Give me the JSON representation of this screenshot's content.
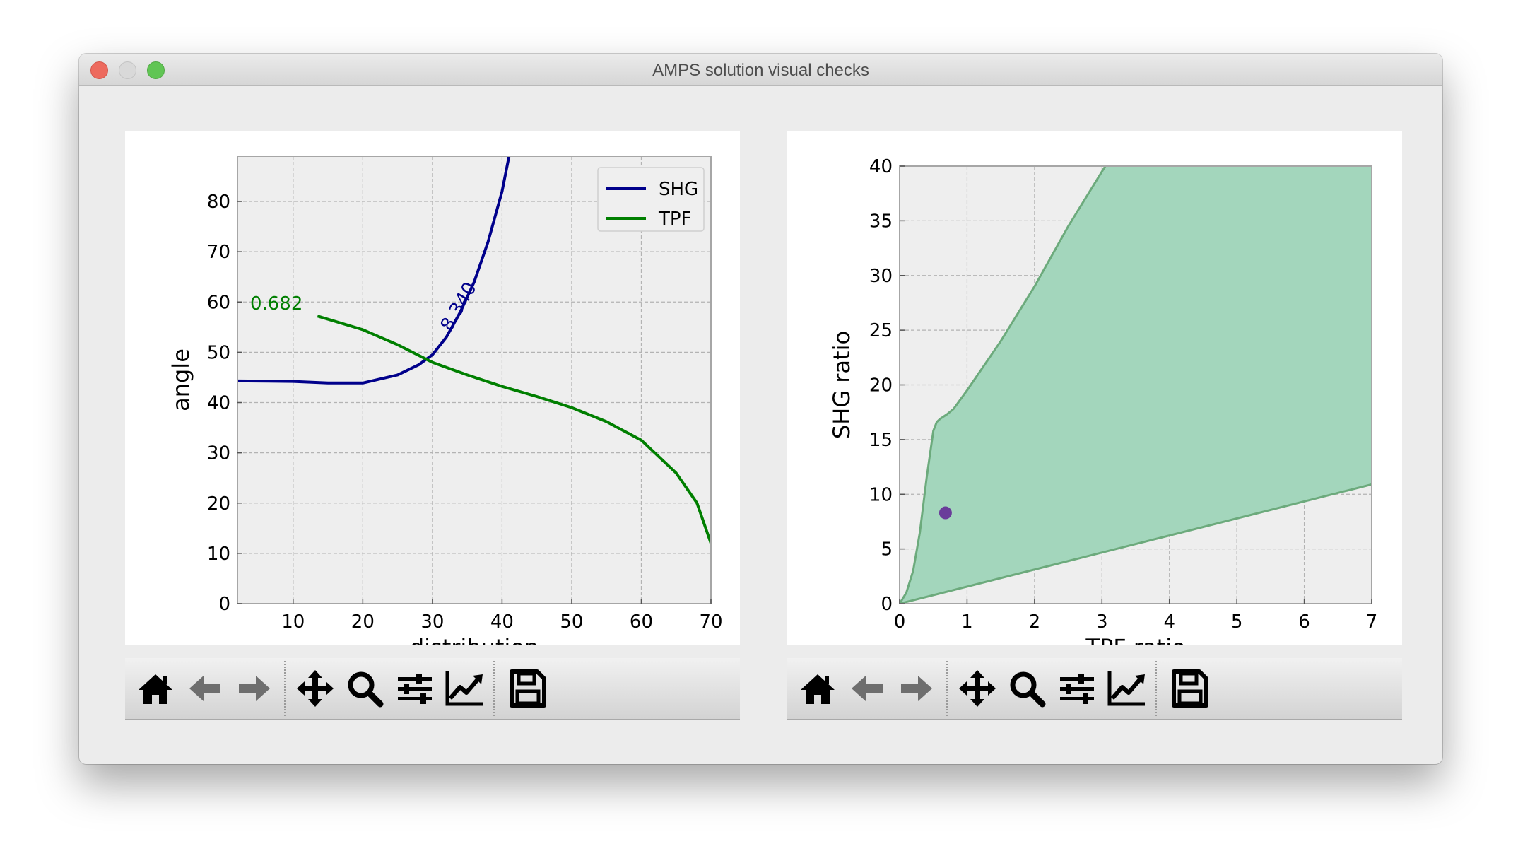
{
  "window": {
    "title": "AMPS solution visual checks"
  },
  "toolbar_icons": [
    "home-icon",
    "back-arrow-icon",
    "forward-arrow-icon",
    "pan-icon",
    "zoom-icon",
    "subplots-config-icon",
    "axes-edit-icon",
    "save-icon"
  ],
  "colors": {
    "shg": "#00008b",
    "tpf": "#007f00",
    "fill": "#a3d6bc",
    "fill_edge": "#6caa7c",
    "point": "#6a3d9a",
    "axes_bg": "#eeeeee"
  },
  "chart_data": [
    {
      "type": "line",
      "xlabel": "distribution",
      "ylabel": "angle",
      "xlim": [
        2,
        70
      ],
      "ylim": [
        0,
        89
      ],
      "xticks": [
        10,
        20,
        30,
        40,
        50,
        60,
        70
      ],
      "yticks": [
        0,
        10,
        20,
        30,
        40,
        50,
        60,
        70,
        80
      ],
      "grid": true,
      "legend": "top-right",
      "series": [
        {
          "name": "SHG",
          "x": [
            2,
            10,
            15,
            20,
            25,
            28,
            30,
            32,
            34,
            36,
            38,
            40,
            41
          ],
          "y": [
            44.3,
            44.2,
            43.9,
            43.9,
            45.5,
            47.5,
            49.5,
            53,
            58,
            64,
            72,
            82,
            89
          ]
        },
        {
          "name": "TPF",
          "x": [
            13.5,
            20,
            25,
            30,
            35,
            40,
            45,
            50,
            55,
            60,
            65,
            68,
            70
          ],
          "y": [
            57.2,
            54.5,
            51.5,
            48,
            45.5,
            43.2,
            41.2,
            39,
            36.2,
            32.5,
            26,
            20,
            12
          ]
        }
      ],
      "annotations": [
        {
          "text": "8.340",
          "series": "SHG",
          "x": 34.5,
          "y": 58.5,
          "rotation": -60
        },
        {
          "text": "0.682",
          "series": "TPF",
          "x": 7.6,
          "y": 58.5,
          "rotation": 0
        }
      ]
    },
    {
      "type": "area",
      "xlabel": "TPF ratio",
      "ylabel": "SHG ratio",
      "xlim": [
        0,
        7
      ],
      "ylim": [
        0,
        40
      ],
      "xticks": [
        0,
        1,
        2,
        3,
        4,
        5,
        6,
        7
      ],
      "yticks": [
        0,
        5,
        10,
        15,
        20,
        25,
        30,
        35,
        40
      ],
      "grid": true,
      "region_upper": {
        "x": [
          0,
          0.1,
          0.2,
          0.3,
          0.4,
          0.5,
          0.55,
          0.6,
          0.7,
          0.8,
          1.0,
          1.5,
          2.0,
          2.5,
          3.0,
          3.05
        ],
        "y": [
          0,
          1,
          3,
          6.5,
          11.5,
          15.8,
          16.6,
          16.9,
          17.3,
          17.8,
          19.5,
          24,
          29,
          34.5,
          39.5,
          40
        ]
      },
      "region_lower": {
        "x": [
          0,
          7
        ],
        "y": [
          0,
          10.9
        ]
      },
      "point": {
        "x": 0.68,
        "y": 8.3
      }
    }
  ]
}
